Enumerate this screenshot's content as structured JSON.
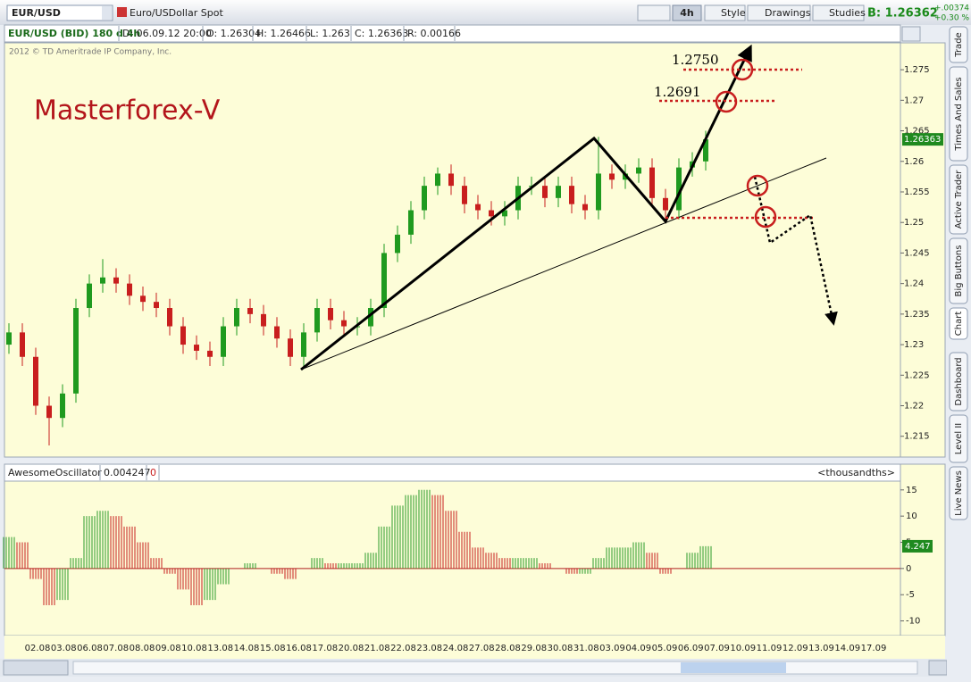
{
  "toolbar": {
    "symbol": "EUR/USD",
    "description": "Euro/USDollar Spot",
    "interval": "4h",
    "style": "Style",
    "drawings": "Drawings",
    "studies": "Studies",
    "bid": "B: 1.26362",
    "change": "+.00374",
    "change_pct": "+0.30 %"
  },
  "info_bar": [
    "EUR/USD (BID) 180 d 4h",
    "D: 06.09.12 20:00",
    "O: 1.26304",
    "H: 1.26466",
    "L: 1.263",
    "C: 1.26363",
    "R: 0.00166"
  ],
  "watermark": "2012 © TD Ameritrade IP Company, Inc.",
  "brand": "Masterforex-V",
  "side_tabs": [
    "Trade",
    "Times And Sales",
    "Active Trader",
    "Big Buttons",
    "Chart",
    "Dashboard",
    "Level II",
    "Live News"
  ],
  "x_axis_labels": [
    "02.08",
    "03.08",
    "06.08",
    "07.08",
    "08.08",
    "09.08",
    "10.08",
    "13.08",
    "14.08",
    "15.08",
    "16.08",
    "17.08",
    "20.08",
    "21.08",
    "22.08",
    "23.08",
    "24.08",
    "27.08",
    "28.08",
    "29.08",
    "30.08",
    "31.08",
    "03.09",
    "04.09",
    "05.09",
    "06.09",
    "07.09",
    "10.09",
    "11.09",
    "12.09",
    "13.09",
    "14.09",
    "17.09"
  ],
  "chart_data": [
    {
      "type": "candlestick",
      "up_color": "#1f9a1f",
      "down_color": "#c81e1e",
      "open": [
        1.23,
        1.232,
        1.228,
        1.22,
        1.218,
        1.222,
        1.236,
        1.24,
        1.241,
        1.24,
        1.238,
        1.237,
        1.236,
        1.233,
        1.23,
        1.229,
        1.228,
        1.233,
        1.236,
        1.235,
        1.233,
        1.231,
        1.228,
        1.232,
        1.236,
        1.234,
        1.233,
        1.233,
        1.236,
        1.245,
        1.248,
        1.252,
        1.256,
        1.258,
        1.256,
        1.253,
        1.252,
        1.251,
        1.252,
        1.256,
        1.256,
        1.254,
        1.256,
        1.253,
        1.252,
        1.258,
        1.257,
        1.258,
        1.259,
        1.254,
        1.252,
        1.259,
        1.26
      ],
      "high": [
        1.2335,
        1.2335,
        1.2295,
        1.2215,
        1.2235,
        1.2375,
        1.2415,
        1.244,
        1.2425,
        1.2415,
        1.2395,
        1.2385,
        1.2375,
        1.2345,
        1.2315,
        1.2305,
        1.2345,
        1.2375,
        1.2375,
        1.2365,
        1.2345,
        1.2325,
        1.2335,
        1.2375,
        1.2375,
        1.2355,
        1.2345,
        1.2375,
        1.2465,
        1.2495,
        1.2535,
        1.2575,
        1.259,
        1.2595,
        1.2575,
        1.2545,
        1.2535,
        1.2535,
        1.2575,
        1.2575,
        1.2575,
        1.2575,
        1.2575,
        1.2545,
        1.264,
        1.2595,
        1.2595,
        1.2605,
        1.2605,
        1.2555,
        1.2605,
        1.2615,
        1.265
      ],
      "low": [
        1.2285,
        1.2265,
        1.2185,
        1.2135,
        1.2165,
        1.2205,
        1.2345,
        1.2385,
        1.2385,
        1.2365,
        1.2355,
        1.2345,
        1.2315,
        1.2285,
        1.2275,
        1.2265,
        1.2265,
        1.2315,
        1.2335,
        1.2315,
        1.2295,
        1.2265,
        1.2265,
        1.2305,
        1.2325,
        1.2315,
        1.2315,
        1.2315,
        1.2345,
        1.2435,
        1.2465,
        1.2505,
        1.2545,
        1.2545,
        1.2515,
        1.2505,
        1.2495,
        1.2495,
        1.2505,
        1.2545,
        1.2525,
        1.2525,
        1.2515,
        1.2505,
        1.2505,
        1.2555,
        1.2555,
        1.2565,
        1.2525,
        1.2505,
        1.2505,
        1.2575,
        1.2585
      ],
      "close": [
        1.232,
        1.228,
        1.22,
        1.218,
        1.222,
        1.236,
        1.24,
        1.241,
        1.24,
        1.238,
        1.237,
        1.236,
        1.233,
        1.23,
        1.229,
        1.228,
        1.233,
        1.236,
        1.235,
        1.233,
        1.231,
        1.228,
        1.232,
        1.236,
        1.234,
        1.233,
        1.233,
        1.236,
        1.245,
        1.248,
        1.252,
        1.256,
        1.258,
        1.256,
        1.253,
        1.252,
        1.251,
        1.252,
        1.256,
        1.256,
        1.254,
        1.256,
        1.253,
        1.252,
        1.258,
        1.257,
        1.258,
        1.259,
        1.254,
        1.252,
        1.259,
        1.26,
        1.2636
      ],
      "ylim": [
        1.2116,
        1.2794
      ],
      "yticks": [
        1.215,
        1.22,
        1.225,
        1.23,
        1.235,
        1.24,
        1.245,
        1.25,
        1.255,
        1.26,
        1.265,
        1.27,
        1.275
      ],
      "last_price": "1.26363",
      "annotations": [
        "1.2750",
        "1.2691"
      ]
    },
    {
      "type": "histogram",
      "name": "AwesomeOscillator",
      "current": "0.004247",
      "offset": "0",
      "units": "<thousandths>",
      "last_label": "4.247",
      "up_color": "#2a9a2a",
      "down_color": "#c81e1e",
      "values": [
        6,
        5,
        -2,
        -7,
        -6,
        2,
        10,
        11,
        10,
        8,
        5,
        2,
        -1,
        -4,
        -7,
        -6,
        -3,
        0,
        1,
        0,
        -1,
        -2,
        0,
        2,
        1,
        1,
        1,
        3,
        8,
        12,
        14,
        15,
        14,
        11,
        7,
        4,
        3,
        2,
        2,
        2,
        1,
        0,
        -1,
        -1,
        2,
        4,
        4,
        5,
        3,
        -1,
        0,
        3,
        4.247
      ],
      "ylim": [
        -12.8,
        16.5
      ],
      "yticks": [
        15,
        10,
        5,
        0,
        -5,
        -10
      ]
    }
  ]
}
